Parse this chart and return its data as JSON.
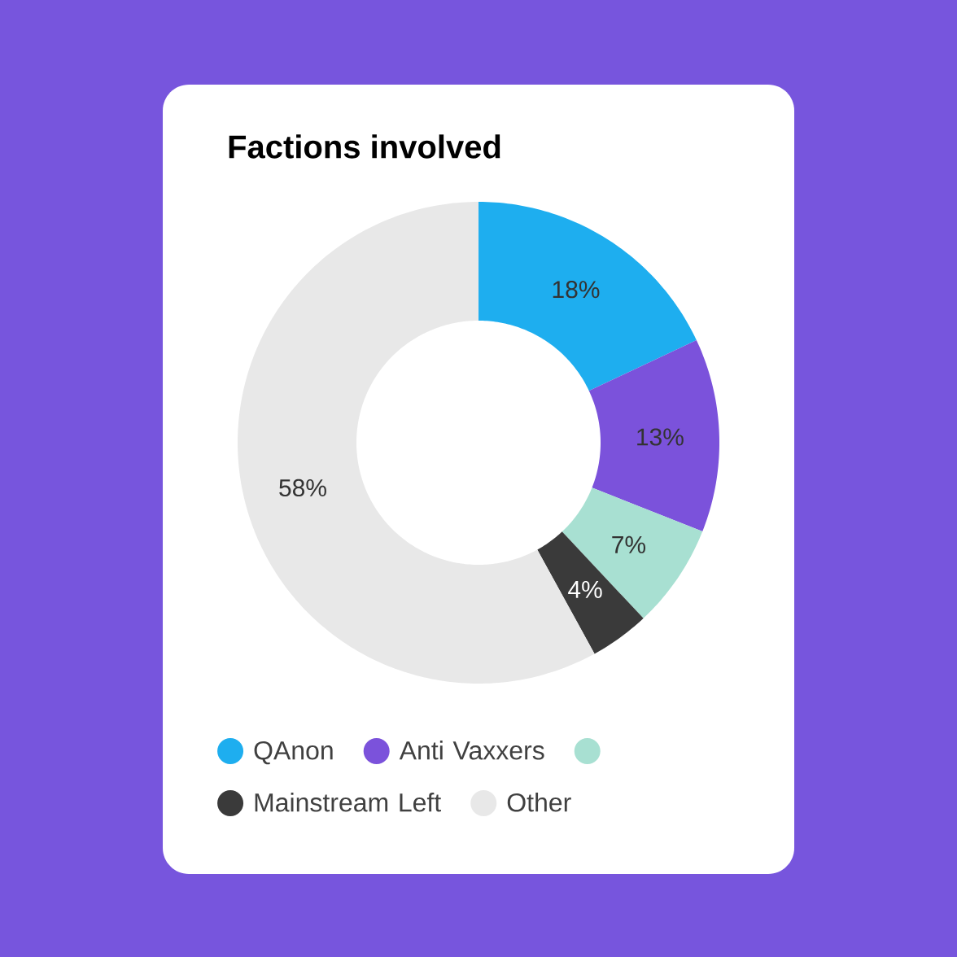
{
  "chart_data": {
    "type": "donut",
    "title": "Factions involved",
    "categories": [
      "QAnon",
      "Anti Vaxxers",
      null,
      "Mainstream Left",
      "Other"
    ],
    "values": [
      18,
      13,
      7,
      4,
      58
    ],
    "value_labels": [
      "18%",
      "13%",
      "7%",
      "4%",
      "58%"
    ],
    "colors": [
      "#1eaeef",
      "#7b52db",
      "#a8e0d2",
      "#3a3a3a",
      "#e8e8e8"
    ],
    "legend": "bottom"
  }
}
